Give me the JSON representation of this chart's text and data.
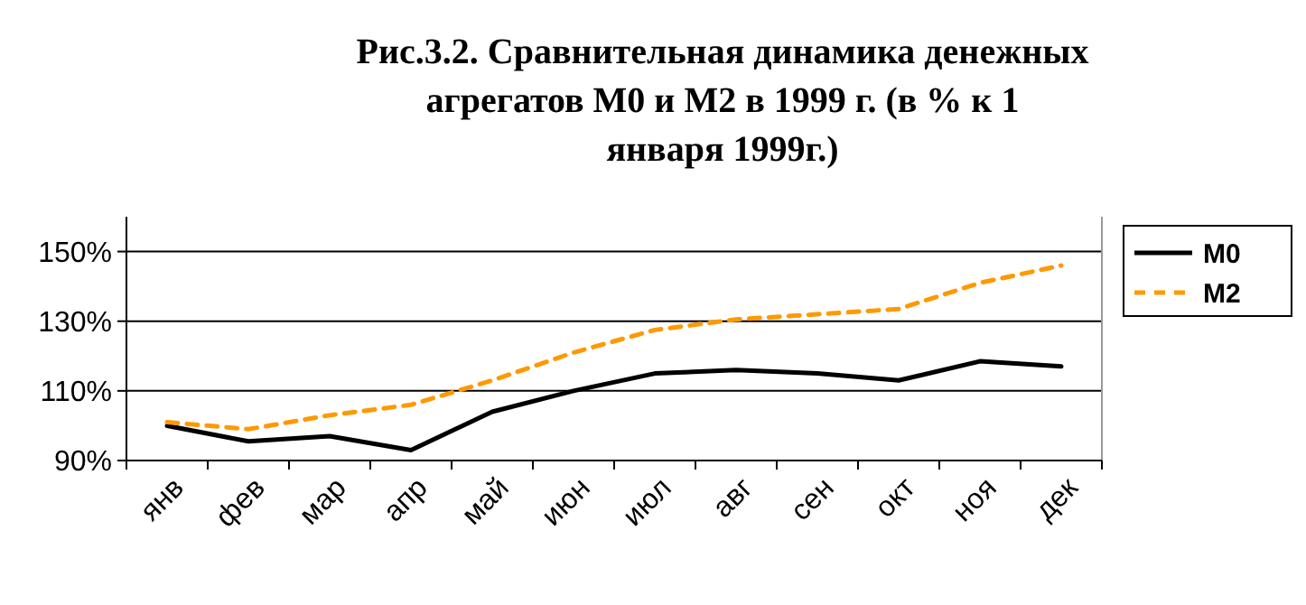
{
  "chart_data": {
    "type": "line",
    "title": "Рис.3.2. Сравнительная динамика денежных агрегатов М0 и М2 в 1999 г. (в % к 1 января 1999г.)",
    "categories": [
      "янв",
      "фев",
      "мар",
      "апр",
      "май",
      "июн",
      "июл",
      "авг",
      "сен",
      "окт",
      "ноя",
      "дек"
    ],
    "series": [
      {
        "name": "М0",
        "color": "#000000",
        "line_style": "solid",
        "values": [
          100,
          95.5,
          97,
          93,
          104,
          110,
          115,
          116,
          115,
          113,
          118.5,
          117
        ]
      },
      {
        "name": "М2",
        "color": "#ff9900",
        "line_style": "dashed",
        "values": [
          101,
          99,
          103,
          106,
          113,
          121,
          127.5,
          130.5,
          132,
          133.5,
          141,
          146
        ]
      }
    ],
    "ylim": [
      90,
      160
    ],
    "yticks": [
      {
        "value": 90,
        "label": "90%"
      },
      {
        "value": 110,
        "label": "110%"
      },
      {
        "value": 130,
        "label": "130%"
      },
      {
        "value": 150,
        "label": "150%"
      }
    ],
    "grid": "y",
    "legend": "right",
    "marker": "none"
  }
}
